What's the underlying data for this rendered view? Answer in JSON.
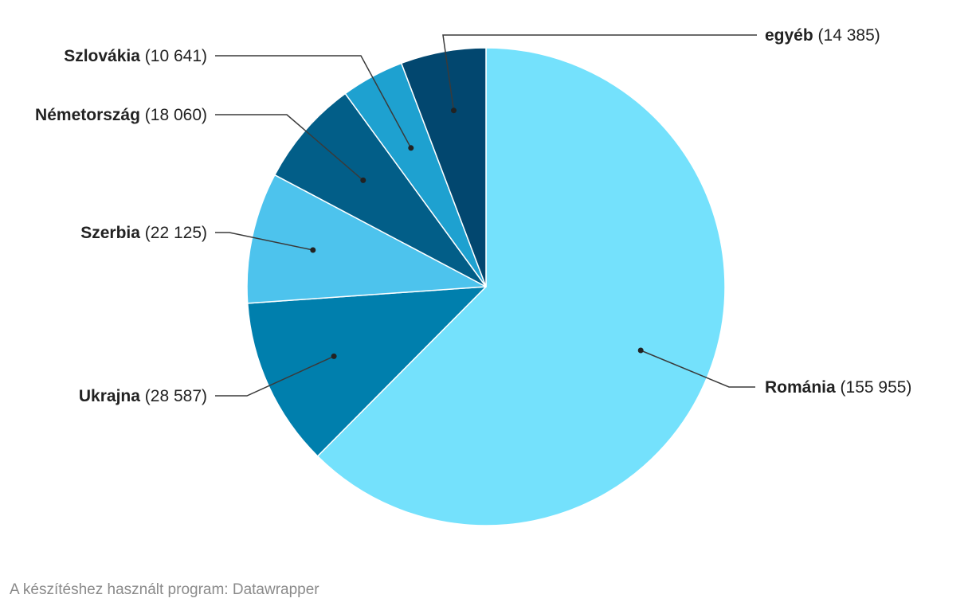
{
  "chart_data": {
    "type": "pie",
    "slices": [
      {
        "label": "Románia",
        "value": 155955,
        "value_text": "(155 955)",
        "color": "#74e1fc"
      },
      {
        "label": "Ukrajna",
        "value": 28587,
        "value_text": "(28 587)",
        "color": "#007fad"
      },
      {
        "label": "Szerbia",
        "value": 22125,
        "value_text": "(22 125)",
        "color": "#4dc3ed"
      },
      {
        "label": "Németország",
        "value": 18060,
        "value_text": "(18 060)",
        "color": "#025e88"
      },
      {
        "label": "Szlovákia",
        "value": 10641,
        "value_text": "(10 641)",
        "color": "#1ea1d0"
      },
      {
        "label": "egyéb",
        "value": 14385,
        "value_text": "(14 385)",
        "color": "#02476f"
      }
    ]
  },
  "footer": {
    "credit": "A készítéshez használt program: Datawrapper"
  }
}
